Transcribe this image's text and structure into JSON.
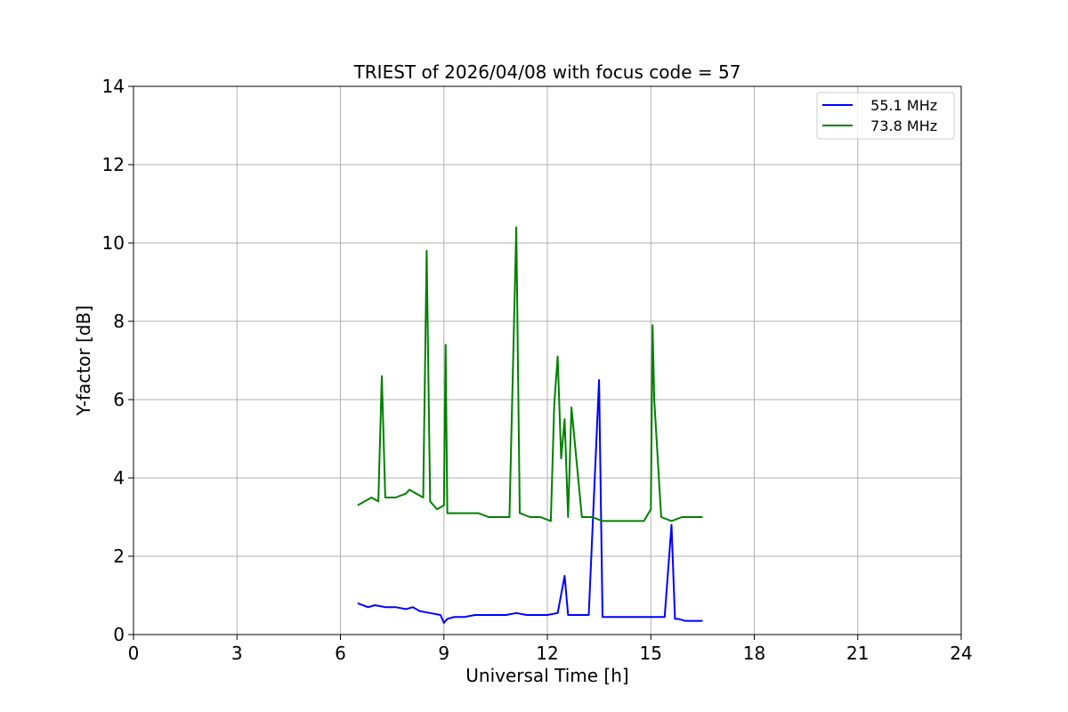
{
  "chart_data": {
    "type": "line",
    "title": "TRIEST of 2026/04/08 with focus code = 57",
    "xlabel": "Universal Time [h]",
    "ylabel": "Y-factor [dB]",
    "xlim": [
      0,
      24
    ],
    "ylim": [
      0,
      14
    ],
    "xticks": [
      0,
      3,
      6,
      9,
      12,
      15,
      18,
      21,
      24
    ],
    "yticks": [
      0,
      2,
      4,
      6,
      8,
      10,
      12,
      14
    ],
    "grid": true,
    "legend_position": "top-right",
    "series": [
      {
        "name": "  55.1 MHz",
        "color": "#0000ff",
        "x": [
          6.5,
          6.8,
          7.0,
          7.3,
          7.6,
          7.9,
          8.1,
          8.3,
          8.6,
          8.9,
          9.0,
          9.1,
          9.3,
          9.6,
          9.9,
          10.2,
          10.5,
          10.8,
          11.1,
          11.4,
          11.7,
          12.0,
          12.3,
          12.5,
          12.6,
          12.9,
          13.2,
          13.5,
          13.6,
          13.9,
          14.2,
          14.5,
          14.8,
          15.1,
          15.4,
          15.6,
          15.7,
          15.8,
          16.0,
          16.2,
          16.5
        ],
        "y": [
          0.8,
          0.7,
          0.75,
          0.7,
          0.7,
          0.65,
          0.7,
          0.6,
          0.55,
          0.5,
          0.3,
          0.4,
          0.45,
          0.45,
          0.5,
          0.5,
          0.5,
          0.5,
          0.55,
          0.5,
          0.5,
          0.5,
          0.55,
          1.5,
          0.5,
          0.5,
          0.5,
          6.5,
          0.45,
          0.45,
          0.45,
          0.45,
          0.45,
          0.45,
          0.45,
          2.8,
          0.4,
          0.4,
          0.35,
          0.35,
          0.35
        ]
      },
      {
        "name": "  73.8 MHz",
        "color": "#008000",
        "x": [
          6.5,
          6.7,
          6.9,
          7.1,
          7.2,
          7.3,
          7.6,
          7.9,
          8.0,
          8.2,
          8.4,
          8.5,
          8.6,
          8.8,
          9.0,
          9.05,
          9.1,
          9.4,
          9.7,
          10.0,
          10.3,
          10.6,
          10.9,
          11.1,
          11.2,
          11.5,
          11.8,
          12.1,
          12.2,
          12.3,
          12.4,
          12.5,
          12.6,
          12.7,
          13.0,
          13.3,
          13.6,
          13.9,
          14.2,
          14.5,
          14.8,
          15.0,
          15.05,
          15.1,
          15.2,
          15.3,
          15.6,
          15.9,
          16.2,
          16.5
        ],
        "y": [
          3.3,
          3.4,
          3.5,
          3.4,
          6.6,
          3.5,
          3.5,
          3.6,
          3.7,
          3.6,
          3.5,
          9.8,
          3.4,
          3.2,
          3.3,
          7.4,
          3.1,
          3.1,
          3.1,
          3.1,
          3.0,
          3.0,
          3.0,
          10.4,
          3.1,
          3.0,
          3.0,
          2.9,
          5.9,
          7.1,
          4.5,
          5.5,
          3.0,
          5.8,
          3.0,
          3.0,
          2.9,
          2.9,
          2.9,
          2.9,
          2.9,
          3.2,
          7.9,
          6.0,
          4.5,
          3.0,
          2.9,
          3.0,
          3.0,
          3.0
        ]
      }
    ]
  }
}
